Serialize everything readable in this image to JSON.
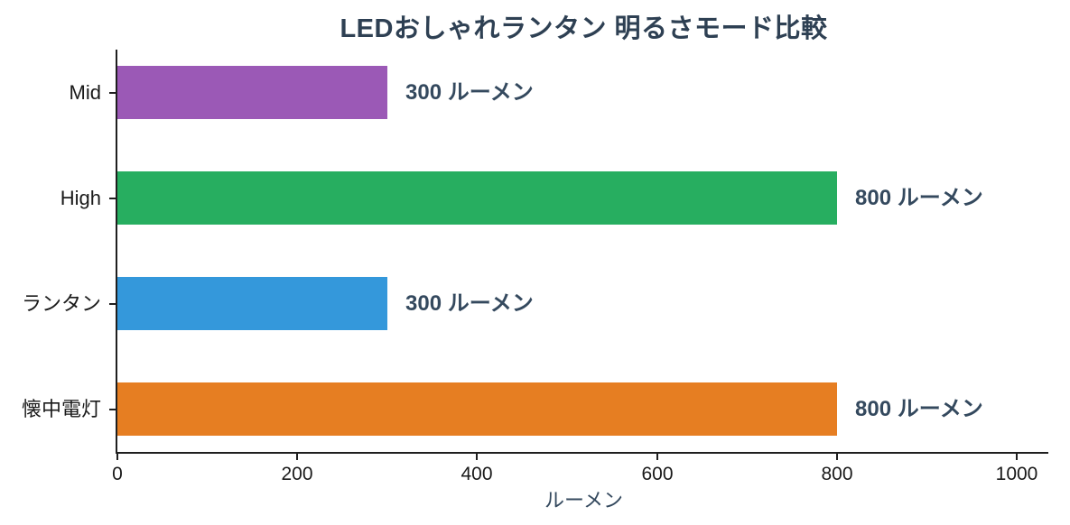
{
  "chart_data": {
    "type": "bar",
    "orientation": "horizontal",
    "title": "LEDおしゃれランタン 明るさモード比較",
    "xlabel": "ルーメン",
    "ylabel": "",
    "categories": [
      "Mid",
      "High",
      "ランタン",
      "懐中電灯"
    ],
    "values": [
      300,
      800,
      300,
      800
    ],
    "value_labels": [
      "300 ルーメン",
      "800 ルーメン",
      "300 ルーメン",
      "800 ルーメン"
    ],
    "bar_colors": [
      "#9b59b6",
      "#27ae60",
      "#3498db",
      "#e67e22"
    ],
    "xlim": [
      0,
      1035
    ],
    "x_ticks": [
      "0",
      "200",
      "400",
      "600",
      "800",
      "1000"
    ],
    "x_tick_values": [
      0,
      200,
      400,
      600,
      800,
      1000
    ],
    "grid": false,
    "legend": false,
    "title_color": "#2e4053",
    "value_label_color": "#34495e",
    "xlabel_color": "#34495e",
    "axis_color": "#1f1f1f",
    "tick_label_color": "#1a1a1a"
  }
}
